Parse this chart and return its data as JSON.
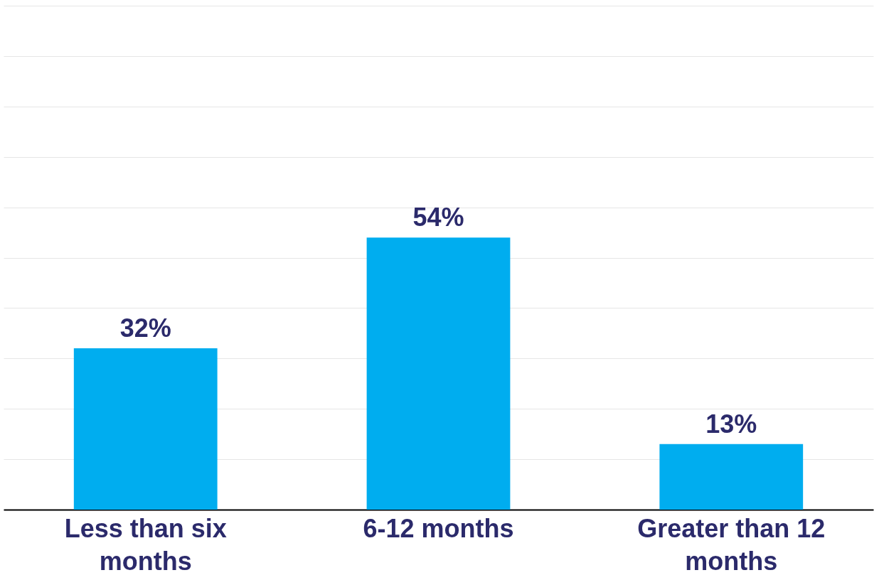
{
  "chart_data": {
    "type": "bar",
    "categories": [
      "Less than six months",
      "6-12 months",
      "Greater than 12 months"
    ],
    "values": [
      32,
      54,
      13
    ],
    "value_labels": [
      "32%",
      "54%",
      "13%"
    ],
    "color": "#00adef",
    "ylim": [
      0,
      100
    ],
    "yticks": [
      0,
      10,
      20,
      30,
      40,
      50,
      60,
      70,
      80,
      90,
      100
    ],
    "grid": "y",
    "tick_labels": "x"
  }
}
